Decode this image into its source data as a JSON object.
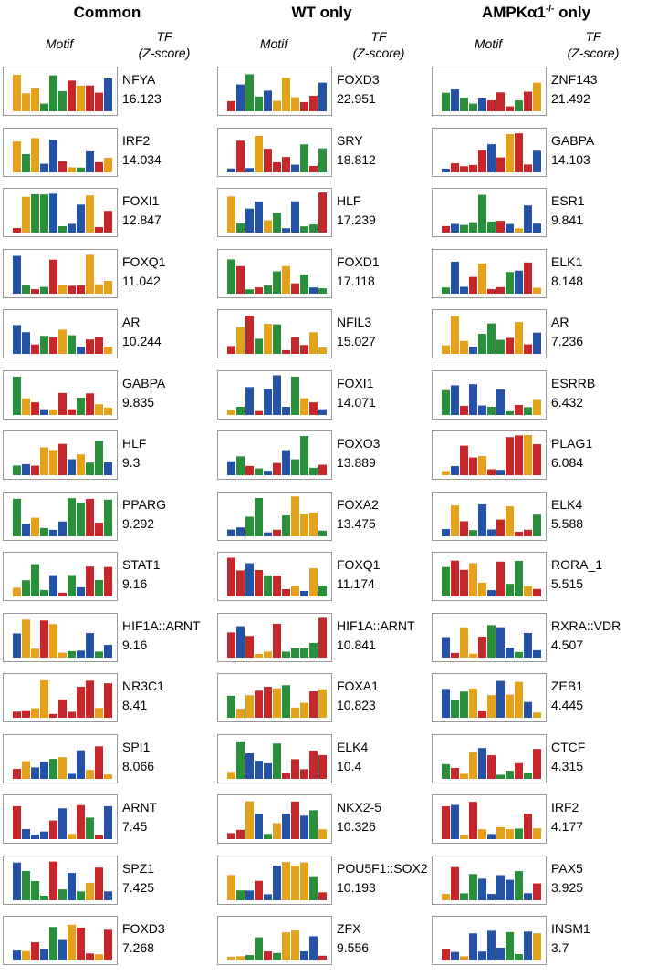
{
  "columns": [
    {
      "title": "Common",
      "motif_label": "Motif",
      "tf_label": "TF",
      "score_label": "(Z-score)",
      "rows": [
        [
          "NFYA",
          "16.123"
        ],
        [
          "IRF2",
          "14.034"
        ],
        [
          "FOXI1",
          "12.847"
        ],
        [
          "FOXQ1",
          "11.042"
        ],
        [
          "AR",
          "10.244"
        ],
        [
          "GABPA",
          "9.835"
        ],
        [
          "HLF",
          "9.3"
        ],
        [
          "PPARG",
          "9.292"
        ],
        [
          "STAT1",
          "9.16"
        ],
        [
          "HIF1A::ARNT",
          "9.16"
        ],
        [
          "NR3C1",
          "8.41"
        ],
        [
          "SPI1",
          "8.066"
        ],
        [
          "ARNT",
          "7.45"
        ],
        [
          "SPZ1",
          "7.425"
        ],
        [
          "FOXD3",
          "7.268"
        ]
      ]
    },
    {
      "title": "WT only",
      "motif_label": "Motif",
      "tf_label": "TF",
      "score_label": "(Z-score)",
      "rows": [
        [
          "FOXD3",
          "22.951"
        ],
        [
          "SRY",
          "18.812"
        ],
        [
          "HLF",
          "17.239"
        ],
        [
          "FOXD1",
          "17.118"
        ],
        [
          "NFIL3",
          "15.027"
        ],
        [
          "FOXI1",
          "14.071"
        ],
        [
          "FOXO3",
          "13.889"
        ],
        [
          "FOXA2",
          "13.475"
        ],
        [
          "FOXQ1",
          "11.174"
        ],
        [
          "HIF1A::ARNT",
          "10.841"
        ],
        [
          "FOXA1",
          "10.823"
        ],
        [
          "ELK4",
          "10.4"
        ],
        [
          "NKX2-5",
          "10.326"
        ],
        [
          "POU5F1::SOX2",
          "10.193"
        ],
        [
          "ZFX",
          "9.556"
        ]
      ]
    },
    {
      "title": "AMPKα1",
      "title_sup": "-/-",
      "title_rest": " only",
      "motif_label": "Motif",
      "tf_label": "TF",
      "score_label": "(Z-score)",
      "rows": [
        [
          "ZNF143",
          "21.492"
        ],
        [
          "GABPA",
          "14.103"
        ],
        [
          "ESR1",
          "9.841"
        ],
        [
          "ELK1",
          "8.148"
        ],
        [
          "AR",
          "7.236"
        ],
        [
          "ESRRB",
          "6.432"
        ],
        [
          "PLAG1",
          "6.084"
        ],
        [
          "ELK4",
          "5.588"
        ],
        [
          "RORA_1",
          "5.515"
        ],
        [
          "RXRA::VDR",
          "4.507"
        ],
        [
          "ZEB1",
          "4.445"
        ],
        [
          "CTCF",
          "4.315"
        ],
        [
          "IRF2",
          "4.177"
        ],
        [
          "PAX5",
          "3.925"
        ],
        [
          "INSM1",
          "3.7"
        ]
      ]
    }
  ]
}
